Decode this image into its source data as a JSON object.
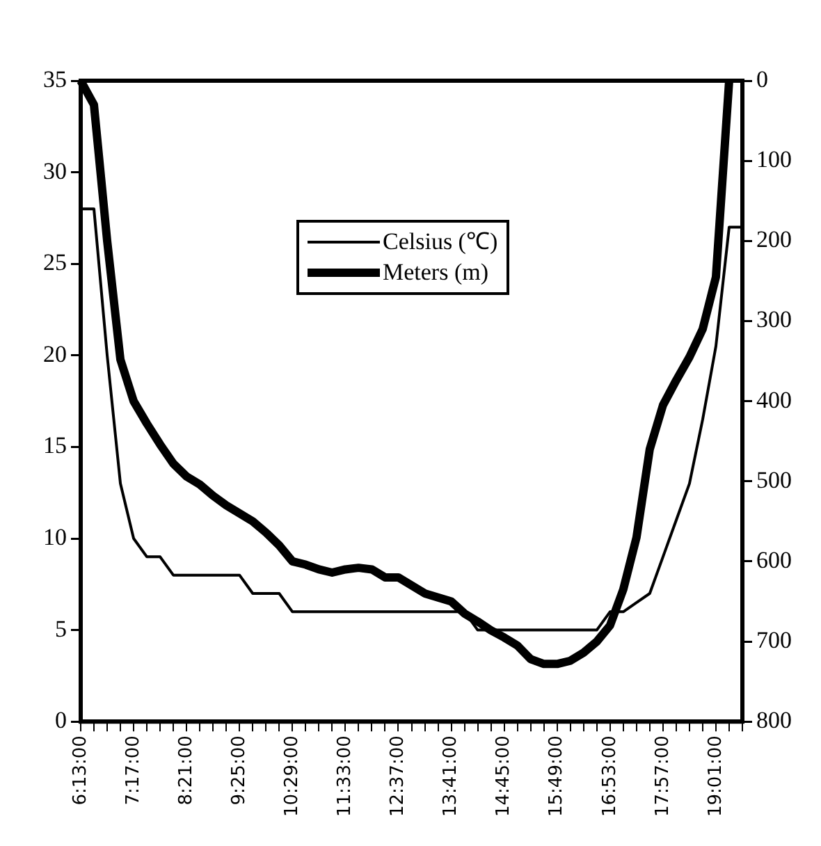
{
  "chart_data": {
    "type": "line",
    "categories": [
      "6:13:00",
      null,
      null,
      null,
      "7:17:00",
      null,
      null,
      null,
      "8:21:00",
      null,
      null,
      null,
      "9:25:00",
      null,
      null,
      null,
      "10:29:00",
      null,
      null,
      null,
      "11:33:00",
      null,
      null,
      null,
      "12:37:00",
      null,
      null,
      null,
      "13:41:00",
      null,
      null,
      null,
      "14:45:00",
      null,
      null,
      null,
      "15:49:00",
      null,
      null,
      null,
      "16:53:00",
      null,
      null,
      null,
      "17:57:00",
      null,
      null,
      null,
      "19:01:00",
      null,
      null
    ],
    "series": [
      {
        "name": "Celsius (℃)",
        "color": "#000000",
        "values": [
          28,
          28,
          20,
          13,
          10,
          9,
          9,
          8,
          8,
          8,
          8,
          8,
          8,
          7,
          7,
          7,
          6,
          6,
          6,
          6,
          6,
          6,
          6,
          6,
          6,
          6,
          6,
          6,
          6,
          6,
          5,
          5,
          5,
          5,
          5,
          5,
          5,
          5,
          5,
          5,
          6,
          6,
          6.5,
          7,
          9,
          11,
          13,
          16.5,
          20.5,
          27,
          27
        ]
      },
      {
        "name": "Meters (m)",
        "color": "#000000",
        "axis": "y2",
        "values": [
          0,
          30,
          200,
          348,
          400,
          428,
          454,
          478,
          494,
          504,
          518,
          530,
          540,
          550,
          564,
          580,
          600,
          604,
          610,
          614,
          610,
          608,
          610,
          620,
          620,
          630,
          640,
          645,
          650,
          665,
          675,
          686,
          695,
          705,
          722,
          728,
          728,
          724,
          714,
          700,
          680,
          635,
          570,
          460,
          405,
          374,
          345,
          310,
          245,
          0,
          null
        ]
      }
    ],
    "ylim": [
      0,
      35
    ],
    "yticks": [
      0,
      5,
      10,
      15,
      20,
      25,
      30,
      35
    ],
    "y2lim": [
      800,
      0
    ],
    "y2ticks": [
      0,
      100,
      200,
      300,
      400,
      500,
      600,
      700,
      800
    ],
    "grid": false,
    "legend": "top",
    "marker": "none",
    "line_style": "solid"
  }
}
